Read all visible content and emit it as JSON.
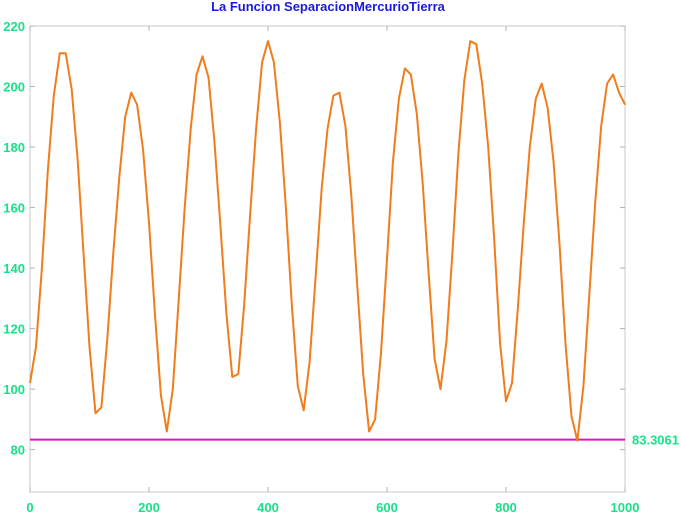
{
  "chart_data": {
    "type": "line",
    "title": "La Funcion SeparacionMercurioTierra",
    "xlabel": "",
    "ylabel": "",
    "xlim": [
      0,
      1000
    ],
    "ylim": [
      66,
      220
    ],
    "x_ticks": [
      0,
      200,
      400,
      600,
      800,
      1000
    ],
    "y_ticks": [
      80,
      100,
      120,
      140,
      160,
      180,
      200,
      220
    ],
    "grid": false,
    "colors": {
      "line": "#f07d1a",
      "reference": "#e010d0",
      "title": "#1a1adf",
      "ticks": "#19e089"
    },
    "series": [
      {
        "x": [
          0,
          10,
          20,
          30,
          40,
          50,
          60,
          70,
          80,
          90,
          100,
          110,
          120,
          130,
          140,
          150,
          160,
          170,
          180,
          190,
          200,
          210,
          220,
          230,
          240,
          250,
          260,
          270,
          280,
          290,
          300,
          310,
          320,
          330,
          340,
          350,
          360,
          370,
          380,
          390,
          400,
          410,
          420,
          430,
          440,
          450,
          460,
          470,
          480,
          490,
          500,
          510,
          520,
          530,
          540,
          550,
          560,
          570,
          580,
          590,
          600,
          610,
          620,
          630,
          640,
          650,
          660,
          670,
          680,
          690,
          700,
          710,
          720,
          730,
          740,
          750,
          760,
          770,
          780,
          790,
          800,
          810,
          820,
          830,
          840,
          850,
          860,
          870,
          880,
          890,
          900,
          910,
          920,
          930,
          940,
          950,
          960,
          970,
          980,
          990,
          1000
        ],
        "values": [
          102,
          114,
          140,
          172,
          197,
          211,
          211,
          199,
          176,
          145,
          114,
          92,
          94,
          117,
          145,
          170,
          190,
          198,
          194,
          179,
          155,
          125,
          98,
          86,
          100,
          130,
          160,
          186,
          204,
          210,
          203,
          182,
          154,
          125,
          104,
          105,
          128,
          158,
          186,
          208,
          215,
          208,
          188,
          160,
          128,
          101,
          93,
          109,
          137,
          166,
          186,
          197,
          198,
          187,
          164,
          134,
          105,
          86,
          90,
          112,
          143,
          175,
          196,
          206,
          204,
          191,
          168,
          138,
          110,
          100,
          116,
          145,
          178,
          202,
          215,
          214,
          201,
          180,
          150,
          115,
          96,
          102,
          127,
          155,
          180,
          196,
          201,
          193,
          175,
          148,
          115,
          91,
          83,
          101,
          131,
          162,
          187,
          201,
          204,
          198,
          194
        ]
      }
    ],
    "reference_line": {
      "value": 83.3061,
      "label": "83.3061"
    }
  }
}
